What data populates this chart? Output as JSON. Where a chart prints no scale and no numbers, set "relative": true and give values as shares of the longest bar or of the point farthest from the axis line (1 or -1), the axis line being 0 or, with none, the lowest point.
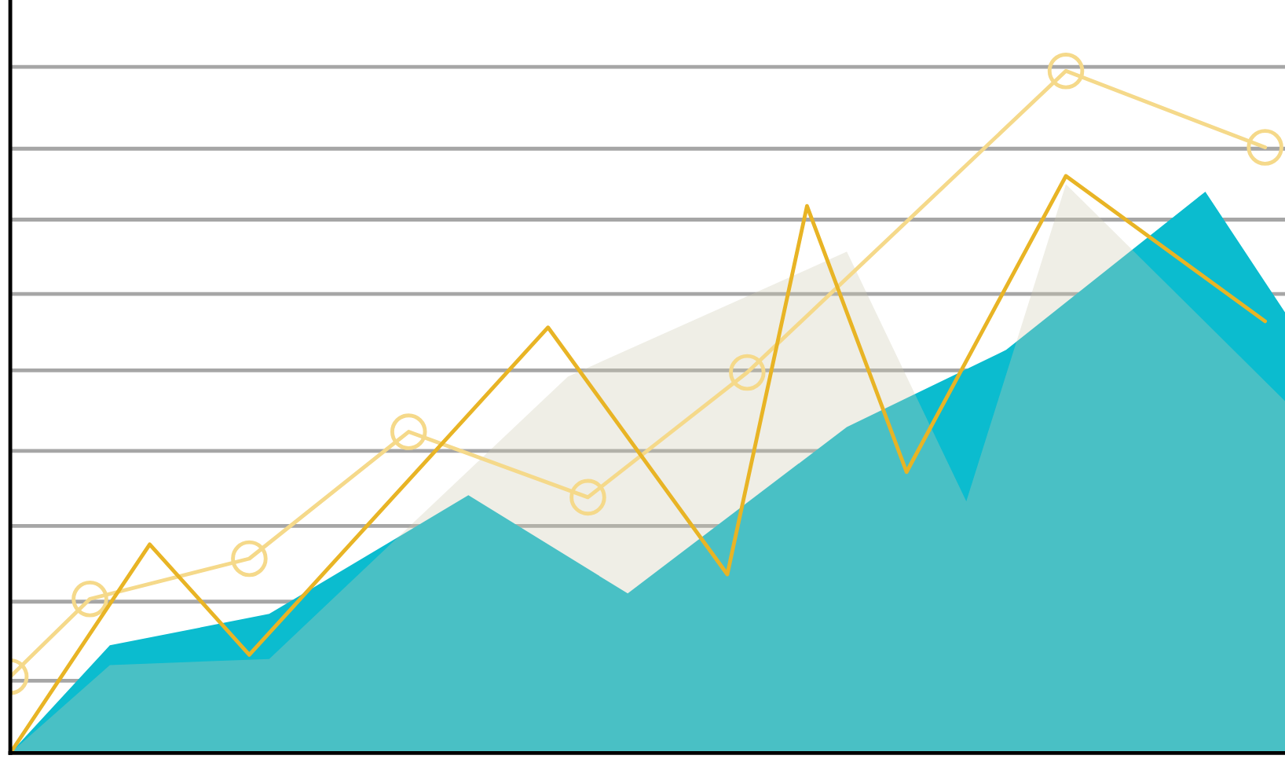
{
  "chart_data": {
    "type": "area",
    "relative": true,
    "grid": "y",
    "categories": [
      null,
      null,
      null,
      null,
      null,
      null,
      null,
      null,
      null,
      null,
      null,
      null,
      null,
      null,
      null,
      null,
      null,
      null,
      null,
      null,
      null,
      null,
      null,
      null,
      null,
      null,
      null,
      null,
      null,
      null,
      null,
      null,
      null,
      null,
      null,
      null,
      null,
      null,
      null,
      null,
      null,
      null,
      null,
      null,
      null,
      null,
      null,
      null,
      null,
      null,
      null,
      null,
      null,
      null,
      null,
      null,
      null,
      null,
      null,
      null,
      null,
      null,
      null,
      null,
      null
    ],
    "series": [
      {
        "color": "#0bbccf",
        "values": [
          0,
          null,
          null,
          null,
          null,
          0.158,
          null,
          null,
          null,
          null,
          null,
          null,
          null,
          0.204,
          null,
          null,
          null,
          null,
          null,
          null,
          null,
          null,
          null,
          0.378,
          null,
          null,
          null,
          null,
          null,
          null,
          null,
          0.234,
          null,
          null,
          null,
          null,
          null,
          null,
          null,
          null,
          null,
          null,
          0.478,
          null,
          null,
          null,
          null,
          null,
          null,
          null,
          0.591,
          null,
          null,
          null,
          null,
          null,
          null,
          null,
          null,
          null,
          0.823,
          null,
          null,
          null,
          0.646
        ]
      },
      {
        "color": "#efeee6",
        "values": [
          0,
          null,
          null,
          null,
          null,
          0.129,
          null,
          null,
          null,
          null,
          null,
          null,
          null,
          0.138,
          null,
          null,
          null,
          null,
          null,
          null,
          null,
          null,
          null,
          null,
          null,
          null,
          null,
          null,
          0.552,
          null,
          null,
          null,
          null,
          null,
          null,
          null,
          null,
          null,
          null,
          null,
          null,
          null,
          0.735,
          null,
          null,
          null,
          null,
          null,
          0.369,
          null,
          null,
          null,
          null,
          0.834,
          null,
          null,
          null,
          null,
          null,
          null,
          null,
          null,
          null,
          null,
          0.516
        ]
      },
      {
        "type": "line",
        "color": "#f5d98a",
        "marker": "circle",
        "values": [
          0.112,
          null,
          null,
          null,
          0.226,
          null,
          null,
          null,
          null,
          null,
          null,
          null,
          0.285,
          null,
          null,
          null,
          null,
          null,
          null,
          null,
          0.471,
          null,
          null,
          null,
          null,
          null,
          null,
          null,
          null,
          0.375,
          null,
          null,
          null,
          null,
          null,
          null,
          null,
          0.558,
          null,
          null,
          null,
          null,
          null,
          null,
          null,
          null,
          null,
          null,
          null,
          null,
          null,
          null,
          null,
          1.0,
          null,
          null,
          null,
          null,
          null,
          null,
          null,
          null,
          null,
          0.888,
          null
        ]
      },
      {
        "type": "line",
        "color": "#e8b425",
        "values": [
          0,
          null,
          null,
          null,
          null,
          null,
          null,
          0.306,
          null,
          null,
          null,
          null,
          0.144,
          null,
          null,
          null,
          null,
          null,
          null,
          null,
          null,
          null,
          null,
          null,
          null,
          null,
          null,
          0.624,
          null,
          null,
          null,
          null,
          null,
          null,
          null,
          null,
          0.262,
          null,
          null,
          null,
          0.802,
          null,
          null,
          null,
          null,
          0.412,
          null,
          null,
          null,
          null,
          null,
          null,
          null,
          0.846,
          null,
          null,
          null,
          null,
          null,
          null,
          null,
          null,
          null,
          0.633,
          null
        ]
      }
    ]
  }
}
